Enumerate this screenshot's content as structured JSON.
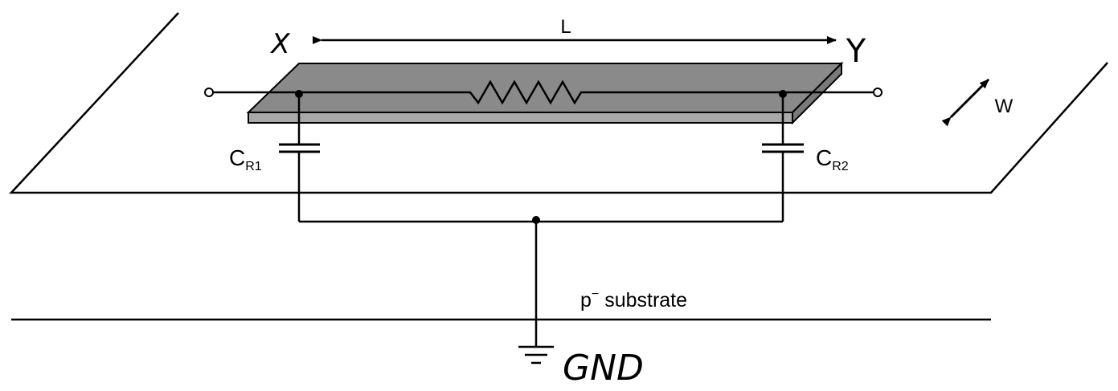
{
  "labels": {
    "length": "L",
    "width": "W",
    "node_left": "X",
    "node_right": "Y",
    "cap_left_main": "C",
    "cap_left_sub": "R1",
    "cap_right_main": "C",
    "cap_right_sub": "R2",
    "substrate_main": "p",
    "substrate_sup": "−",
    "substrate_rest": " substrate",
    "ground": "GND"
  },
  "colors": {
    "line": "#000000",
    "resistor_top": "#8a8a8a",
    "resistor_front": "#a9a9a9",
    "resistor_side": "#7a7a7a",
    "background": "#ffffff"
  }
}
